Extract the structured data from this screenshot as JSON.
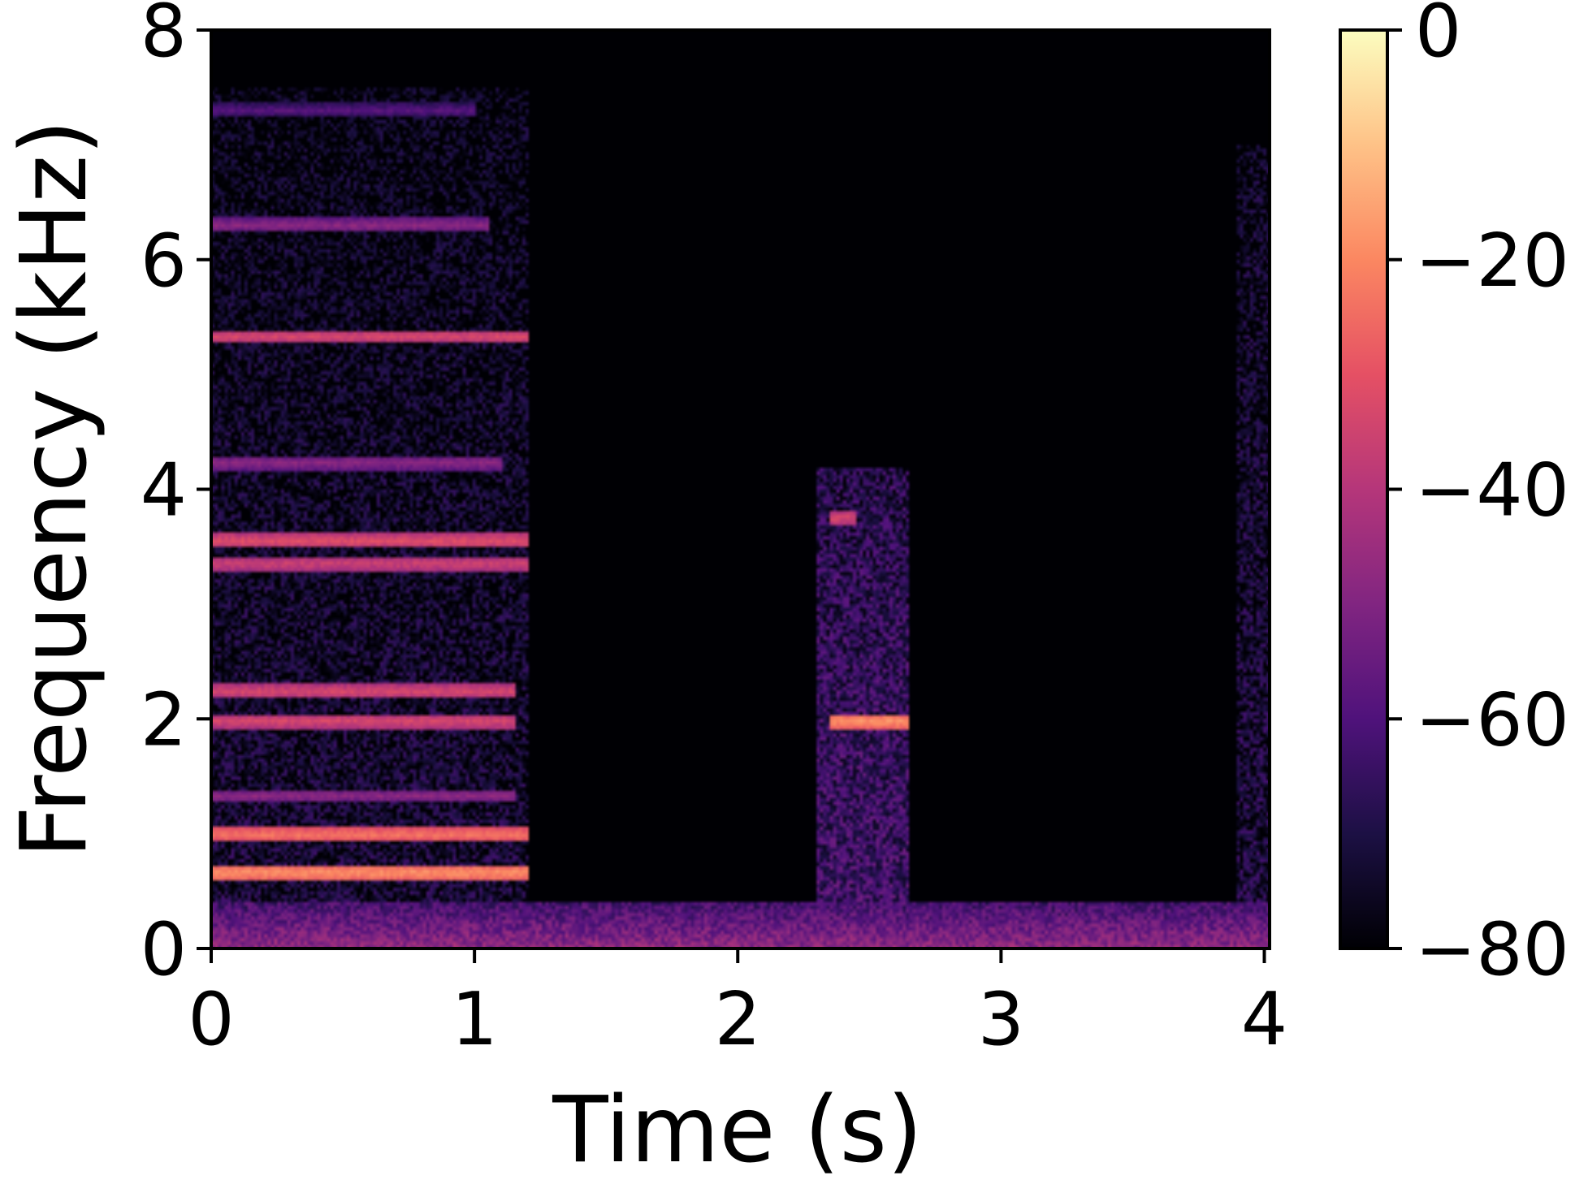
{
  "chart_data": {
    "type": "heatmap",
    "subtype": "spectrogram",
    "title": "",
    "xlabel": "Time (s)",
    "ylabel": "Frequency (kHz)",
    "xlim": [
      0,
      4.02
    ],
    "ylim": [
      0,
      8
    ],
    "xticks": [
      0,
      1,
      2,
      3,
      4
    ],
    "xtick_labels": [
      "0",
      "1",
      "2",
      "3",
      "4"
    ],
    "yticks": [
      0,
      2,
      4,
      6,
      8
    ],
    "ytick_labels": [
      "0",
      "2",
      "4",
      "6",
      "8"
    ],
    "colorbar": {
      "colormap": "magma",
      "range": [
        -80,
        0
      ],
      "ticks": [
        0,
        -20,
        -40,
        -60,
        -80
      ],
      "tick_labels": [
        "0",
        "−20",
        "−40",
        "−60",
        "−80"
      ]
    },
    "grid": false,
    "background_level_db": -80,
    "broadband_regions": [
      {
        "t_start": 0.0,
        "t_end": 1.2,
        "f_min": 0.0,
        "f_max": 7.5,
        "level_db": -68
      },
      {
        "t_start": 2.3,
        "t_end": 2.65,
        "f_min": 0.4,
        "f_max": 4.2,
        "level_db": -58
      },
      {
        "t_start": 3.9,
        "t_end": 4.02,
        "f_min": 0.0,
        "f_max": 7.0,
        "level_db": -66
      }
    ],
    "noise_floor_band": {
      "t_start": 0.0,
      "t_end": 4.02,
      "f_min": 0.0,
      "f_max": 0.4,
      "level_db": -55
    },
    "harmonic_lines": [
      {
        "t_start": 0.0,
        "t_end": 1.2,
        "frequency_khz": 0.66,
        "level_db": -15
      },
      {
        "t_start": 0.0,
        "t_end": 1.2,
        "frequency_khz": 0.99,
        "level_db": -20
      },
      {
        "t_start": 0.0,
        "t_end": 1.15,
        "frequency_khz": 1.33,
        "level_db": -45
      },
      {
        "t_start": 0.0,
        "t_end": 1.15,
        "frequency_khz": 1.98,
        "level_db": -30
      },
      {
        "t_start": 0.0,
        "t_end": 1.15,
        "frequency_khz": 2.24,
        "level_db": -30
      },
      {
        "t_start": 0.0,
        "t_end": 1.2,
        "frequency_khz": 3.35,
        "level_db": -32
      },
      {
        "t_start": 0.0,
        "t_end": 1.2,
        "frequency_khz": 3.55,
        "level_db": -28
      },
      {
        "t_start": 0.0,
        "t_end": 1.1,
        "frequency_khz": 4.23,
        "level_db": -45
      },
      {
        "t_start": 0.0,
        "t_end": 1.2,
        "frequency_khz": 5.33,
        "level_db": -30
      },
      {
        "t_start": 0.0,
        "t_end": 1.05,
        "frequency_khz": 6.3,
        "level_db": -45
      },
      {
        "t_start": 0.0,
        "t_end": 1.0,
        "frequency_khz": 7.3,
        "level_db": -55
      },
      {
        "t_start": 2.35,
        "t_end": 2.65,
        "frequency_khz": 1.98,
        "level_db": -15
      },
      {
        "t_start": 2.35,
        "t_end": 2.45,
        "frequency_khz": 3.75,
        "level_db": -30
      }
    ]
  }
}
